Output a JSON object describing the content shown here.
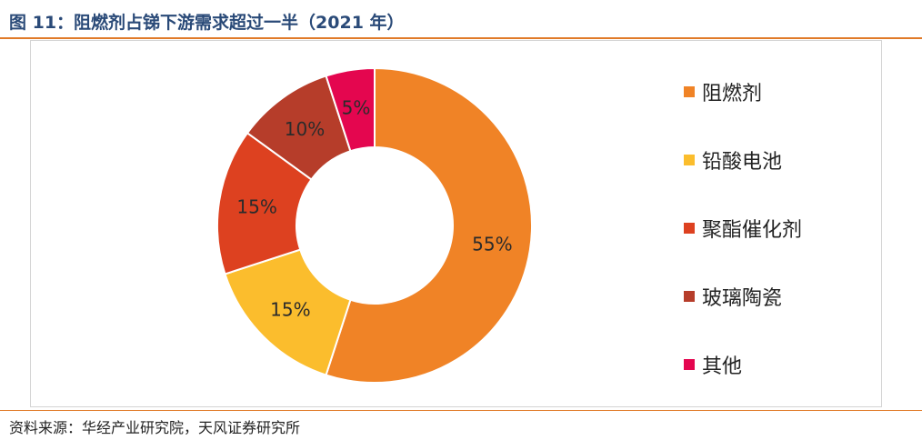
{
  "figure": {
    "title": "图 11：阻燃剂占锑下游需求超过一半（2021 年）",
    "source": "资料来源：华经产业研究院，天风证券研究所"
  },
  "chart_data": {
    "type": "pie",
    "style": "donut",
    "categories": [
      "阻燃剂",
      "铅酸电池",
      "聚酯催化剂",
      "玻璃陶瓷",
      "其他"
    ],
    "values": [
      55,
      15,
      15,
      10,
      5
    ],
    "data_labels": [
      "55%",
      "15%",
      "15%",
      "10%",
      "5%"
    ],
    "colors": [
      "#f08326",
      "#fbbd2d",
      "#dd4120",
      "#b63d2a",
      "#e4064f"
    ],
    "legend_position": "right"
  }
}
